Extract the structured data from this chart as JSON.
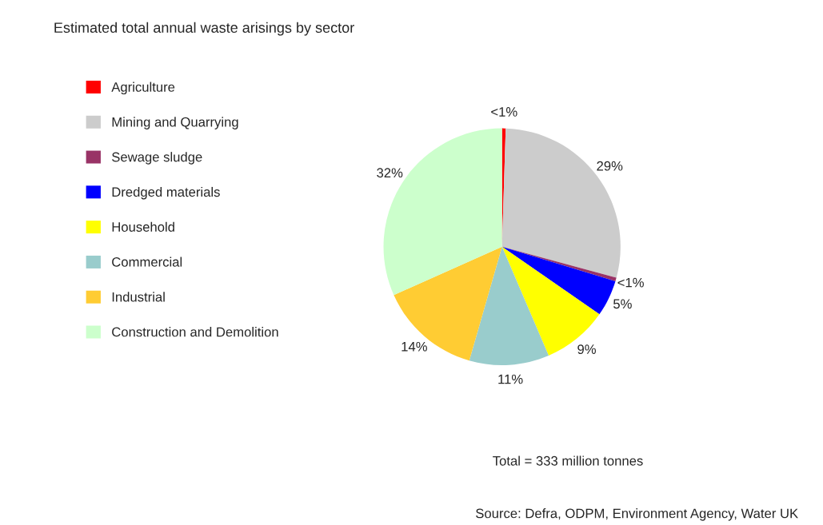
{
  "chart_data": {
    "type": "pie",
    "title": "Estimated total annual waste arisings by sector",
    "categories": [
      "Agriculture",
      "Mining and Quarrying",
      "Sewage sludge",
      "Dredged materials",
      "Household",
      "Commercial",
      "Industrial",
      "Construction and Demolition"
    ],
    "values": [
      0.5,
      29,
      0.5,
      5,
      9,
      11,
      14,
      32
    ],
    "value_labels": [
      "<1%",
      "29%",
      "<1%",
      "5%",
      "9%",
      "11%",
      "14%",
      "32%"
    ],
    "colors": [
      "#ff0000",
      "#cccccc",
      "#993366",
      "#0000ff",
      "#ffff00",
      "#99cccc",
      "#ffcc33",
      "#ccffcc"
    ],
    "legend": "left",
    "annotations": [
      "Total = 333 million tonnes",
      "Source: Defra, ODPM, Environment Agency, Water UK"
    ]
  }
}
